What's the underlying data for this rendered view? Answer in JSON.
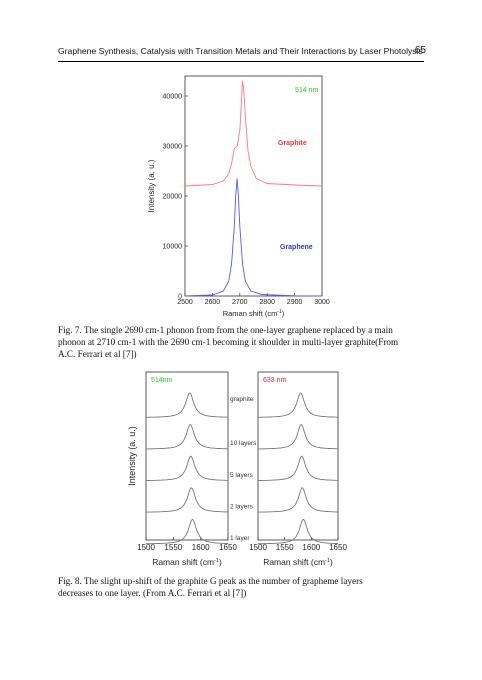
{
  "header": {
    "title": "Graphene Synthesis, Catalysis with Transition Metals and Their Interactions by Laser Photolysis",
    "page_number": "65"
  },
  "figure7": {
    "caption_lines": [
      "Fig. 7. The single 2690 cm-1 phonon from  from the one-layer graphene replaced by a main",
      "phonon at 2710 cm-1 with the 2690 cm-1 becoming it shoulder in multi-layer graphite(From",
      "A.C. Ferrari et al [7])"
    ]
  },
  "figure8": {
    "caption_lines": [
      "Fig. 8. The slight up-shift of the graphite G peak as the number of grapheme layers",
      "decreases to one layer. (From A.C. Ferrari et al [7])"
    ]
  },
  "chart_data": [
    {
      "type": "line",
      "xlabel": "Raman shift (cm-1)",
      "ylabel": "Intensity (a. u.)",
      "xlim": [
        2500,
        3000
      ],
      "ylim": [
        0,
        44000
      ],
      "xticks": [
        "2500",
        "2600",
        "2700",
        "2800",
        "2900",
        "3000"
      ],
      "yticks": [
        "0",
        "10000",
        "20000",
        "30000",
        "40000"
      ],
      "annotation": "514 nm",
      "series": [
        {
          "name": "Graphite",
          "color": "#ff7a7a",
          "x": [
            2500,
            2600,
            2640,
            2660,
            2670,
            2680,
            2690,
            2700,
            2705,
            2710,
            2715,
            2720,
            2730,
            2740,
            2760,
            2800,
            2900,
            3000
          ],
          "y": [
            22000,
            22300,
            23000,
            24500,
            26500,
            29500,
            30000,
            33000,
            38000,
            43000,
            41000,
            36000,
            29000,
            26000,
            23500,
            22500,
            22200,
            22000
          ]
        },
        {
          "name": "Graphene",
          "color": "#5555ff",
          "x": [
            2500,
            2600,
            2640,
            2660,
            2670,
            2680,
            2685,
            2690,
            2695,
            2700,
            2710,
            2720,
            2740,
            2780,
            2900,
            3000
          ],
          "y": [
            0,
            200,
            1000,
            3000,
            6500,
            14000,
            20000,
            23500,
            20000,
            14000,
            6500,
            3000,
            1000,
            300,
            50,
            0
          ]
        }
      ]
    },
    {
      "type": "line",
      "xlabel": "Raman shift (cm-1)",
      "ylabel": "Intensity (a. u.)",
      "xlim": [
        1500,
        1650
      ],
      "xticks": [
        "1500",
        "1550",
        "1600",
        "1650"
      ],
      "annotation": "514nm",
      "layers": [
        "graphite",
        "10 layers",
        "5 layers",
        "2 layers",
        "1 layer"
      ],
      "peak_positions": [
        1580,
        1581,
        1582,
        1583,
        1585
      ]
    },
    {
      "type": "line",
      "xlabel": "Raman shift (cm-1)",
      "xlim": [
        1500,
        1650
      ],
      "xticks": [
        "1500",
        "1550",
        "1600",
        "1650"
      ],
      "annotation": "633 nm",
      "peak_positions": [
        1580,
        1581,
        1582,
        1583,
        1585
      ]
    }
  ],
  "colors": {
    "annotation_green": "#22cc22",
    "annotation_red": "#ff2222",
    "graphite_label": "#ff3333",
    "graphene_label": "#3333cc"
  }
}
